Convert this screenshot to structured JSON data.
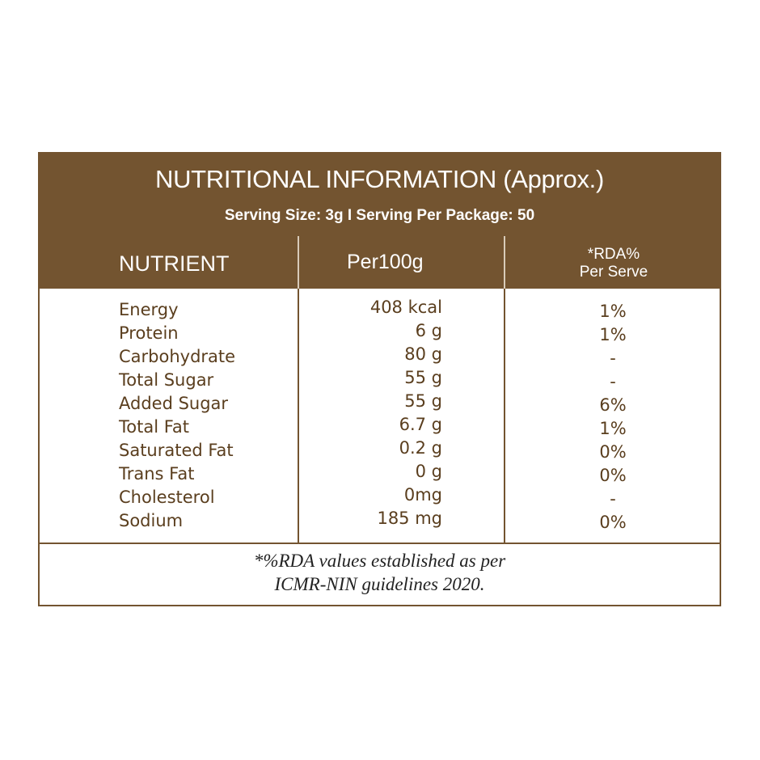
{
  "title": "NUTRITIONAL INFORMATION (Approx.)",
  "serving_line": "Serving Size: 3g  I  Serving Per Package: 50",
  "columns": {
    "nutrient": "NUTRIENT",
    "per100": "Per100g",
    "rda_line1": "*RDA%",
    "rda_line2": "Per Serve"
  },
  "rows": [
    {
      "name": "Energy",
      "per100": "408 kcal",
      "rda": "1%"
    },
    {
      "name": "Protein",
      "per100": "6 g",
      "rda": "1%"
    },
    {
      "name": "Carbohydrate",
      "per100": "80 g",
      "rda": "-"
    },
    {
      "name": "Total Sugar",
      "per100": "55 g",
      "rda": "-"
    },
    {
      "name": "Added Sugar",
      "per100": "55 g",
      "rda": "6%"
    },
    {
      "name": "Total Fat",
      "per100": "6.7 g",
      "rda": "1%"
    },
    {
      "name": "Saturated Fat",
      "per100": "0.2 g",
      "rda": "0%"
    },
    {
      "name": "Trans Fat",
      "per100": "0 g",
      "rda": "0%"
    },
    {
      "name": "Cholesterol",
      "per100": "0mg",
      "rda": "-"
    },
    {
      "name": "Sodium",
      "per100": "185 mg",
      "rda": "0%"
    }
  ],
  "footnote": {
    "line1": "*%RDA values established as per",
    "line2": "ICMR-NIN guidelines 2020."
  },
  "colors": {
    "brand_brown": "#735430",
    "text_brown": "#5a3e1e"
  }
}
